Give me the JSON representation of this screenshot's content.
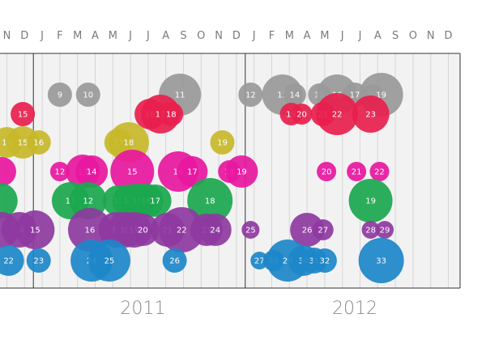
{
  "chart_data": {
    "type": "scatter",
    "months": [
      "N",
      "D",
      "J",
      "F",
      "M",
      "A",
      "M",
      "J",
      "J",
      "A",
      "S",
      "O",
      "N",
      "D",
      "J",
      "F",
      "M",
      "A",
      "M",
      "J",
      "J",
      "A",
      "S",
      "O",
      "N",
      "D"
    ],
    "years": [
      "2011",
      "2012"
    ],
    "grid": true,
    "series": [
      {
        "color": "#999999",
        "points": [
          {
            "label": "9",
            "month": 3.0,
            "size": 15
          },
          {
            "label": "10",
            "month": 4.6,
            "size": 15
          },
          {
            "label": "11",
            "month": 9.8,
            "size": 26
          },
          {
            "label": "12",
            "month": 13.8,
            "size": 15
          },
          {
            "label": "13",
            "month": 15.6,
            "size": 25
          },
          {
            "label": "14",
            "month": 16.3,
            "size": 14
          },
          {
            "label": "15",
            "month": 17.7,
            "size": 14
          },
          {
            "label": "16",
            "month": 18.7,
            "size": 25
          },
          {
            "label": "17",
            "month": 19.7,
            "size": 15
          },
          {
            "label": "18",
            "month": 20.7,
            "size": 13
          },
          {
            "label": "19",
            "month": 21.2,
            "size": 27
          }
        ]
      },
      {
        "color": "#e8204e",
        "points": [
          {
            "label": "15",
            "month": 0.9,
            "size": 15
          },
          {
            "label": "16",
            "month": 8.1,
            "size": 19
          },
          {
            "label": "17",
            "month": 8.7,
            "size": 24
          },
          {
            "label": "18",
            "month": 9.3,
            "size": 15
          },
          {
            "label": "19",
            "month": 16.1,
            "size": 14
          },
          {
            "label": "20",
            "month": 16.7,
            "size": 13
          },
          {
            "label": "21",
            "month": 17.9,
            "size": 15
          },
          {
            "label": "22",
            "month": 18.7,
            "size": 26
          },
          {
            "label": "23",
            "month": 20.6,
            "size": 23
          }
        ]
      },
      {
        "color": "#c8b82a",
        "points": [
          {
            "label": "14",
            "month": 0.0,
            "size": 19
          },
          {
            "label": "15",
            "month": 0.9,
            "size": 20
          },
          {
            "label": "16",
            "month": 1.8,
            "size": 15
          },
          {
            "label": "17",
            "month": 6.3,
            "size": 17
          },
          {
            "label": "18",
            "month": 6.9,
            "size": 25
          },
          {
            "label": "19",
            "month": 12.2,
            "size": 15
          }
        ]
      },
      {
        "color": "#e817a0",
        "points": [
          {
            "label": "12",
            "month": 3.0,
            "size": 12
          },
          {
            "label": "13",
            "month": 4.3,
            "size": 21
          },
          {
            "label": "14",
            "month": 4.8,
            "size": 20
          },
          {
            "label": "15",
            "month": 7.1,
            "size": 27
          },
          {
            "label": "16",
            "month": 9.7,
            "size": 25
          },
          {
            "label": "17",
            "month": 10.5,
            "size": 19
          },
          {
            "label": "18",
            "month": 12.6,
            "size": 14
          },
          {
            "label": "19",
            "month": 13.3,
            "size": 20
          },
          {
            "label": "20",
            "month": 18.1,
            "size": 12
          },
          {
            "label": "21",
            "month": 19.8,
            "size": 12
          },
          {
            "label": "22",
            "month": 21.1,
            "size": 12
          },
          {
            "label": "",
            "month": -0.3,
            "size": 18
          }
        ]
      },
      {
        "color": "#1ba74e",
        "points": [
          {
            "label": "11",
            "month": 3.6,
            "size": 23
          },
          {
            "label": "12",
            "month": 4.6,
            "size": 23
          },
          {
            "label": "13",
            "month": 6.3,
            "size": 19
          },
          {
            "label": "14",
            "month": 6.9,
            "size": 20
          },
          {
            "label": "15",
            "month": 7.4,
            "size": 21
          },
          {
            "label": "16",
            "month": 7.9,
            "size": 21
          },
          {
            "label": "17",
            "month": 8.4,
            "size": 20
          },
          {
            "label": "18",
            "month": 11.5,
            "size": 28
          },
          {
            "label": "19",
            "month": 20.6,
            "size": 27
          },
          {
            "label": "",
            "month": -0.4,
            "size": 22
          }
        ]
      },
      {
        "color": "#8e3aa0",
        "points": [
          {
            "label": "14",
            "month": 0.7,
            "size": 22
          },
          {
            "label": "15",
            "month": 1.6,
            "size": 24
          },
          {
            "label": "16",
            "month": 4.7,
            "size": 27
          },
          {
            "label": "17",
            "month": 6.2,
            "size": 22
          },
          {
            "label": "18",
            "month": 6.7,
            "size": 22
          },
          {
            "label": "19",
            "month": 7.2,
            "size": 22
          },
          {
            "label": "20",
            "month": 7.7,
            "size": 20
          },
          {
            "label": "21",
            "month": 9.1,
            "size": 21
          },
          {
            "label": "22",
            "month": 9.9,
            "size": 28
          },
          {
            "label": "23",
            "month": 11.3,
            "size": 20
          },
          {
            "label": "24",
            "month": 11.8,
            "size": 20
          },
          {
            "label": "25",
            "month": 13.8,
            "size": 11
          },
          {
            "label": "26",
            "month": 17.0,
            "size": 21
          },
          {
            "label": "27",
            "month": 17.9,
            "size": 13
          },
          {
            "label": "28",
            "month": 20.6,
            "size": 11
          },
          {
            "label": "29",
            "month": 21.4,
            "size": 11
          },
          {
            "label": "",
            "month": -0.3,
            "size": 22
          }
        ]
      },
      {
        "color": "#1c87c9",
        "points": [
          {
            "label": "22",
            "month": 0.1,
            "size": 19
          },
          {
            "label": "23",
            "month": 1.8,
            "size": 15
          },
          {
            "label": "24",
            "month": 4.8,
            "size": 26
          },
          {
            "label": "25",
            "month": 5.8,
            "size": 26
          },
          {
            "label": "26",
            "month": 9.5,
            "size": 15
          },
          {
            "label": "27",
            "month": 14.3,
            "size": 11
          },
          {
            "label": "28",
            "month": 15.1,
            "size": 13
          },
          {
            "label": "29",
            "month": 15.9,
            "size": 26
          },
          {
            "label": "30",
            "month": 16.8,
            "size": 19
          },
          {
            "label": "31",
            "month": 17.4,
            "size": 16
          },
          {
            "label": "32",
            "month": 18.0,
            "size": 15
          },
          {
            "label": "33",
            "month": 21.2,
            "size": 28
          }
        ]
      }
    ]
  }
}
